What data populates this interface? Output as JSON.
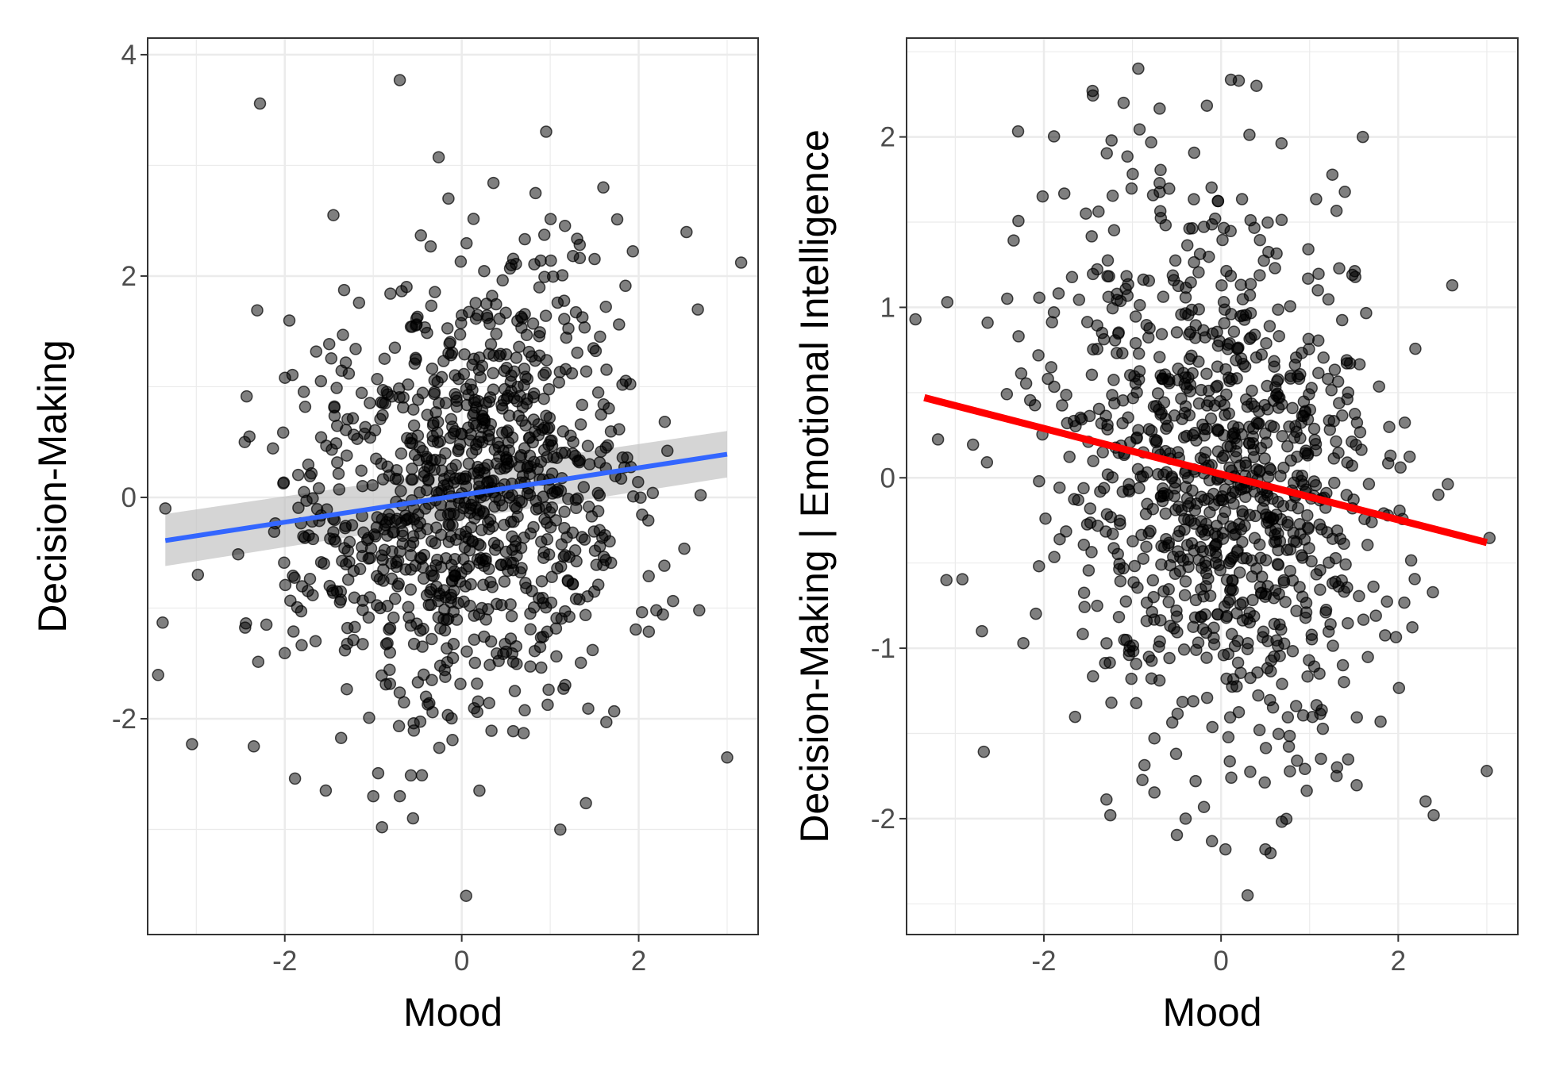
{
  "chart_data": [
    {
      "type": "scatter",
      "xlabel": "Mood",
      "ylabel": "Decision-Making",
      "xlim": [
        -3.55,
        3.35
      ],
      "ylim": [
        -3.95,
        4.15
      ],
      "x_ticks": [
        -2,
        0,
        2
      ],
      "x_tick_labels": [
        "-2",
        "0",
        "2"
      ],
      "y_ticks": [
        -2,
        0,
        2,
        4
      ],
      "y_tick_labels": [
        "-2",
        "0",
        "2",
        "4"
      ],
      "grid": true,
      "fit_line": {
        "x": [
          -3.35,
          3.0
        ],
        "y": [
          -0.39,
          0.39
        ],
        "color": "#3366ff",
        "ci_band": true,
        "ci_upper": [
          -0.15,
          0.6
        ],
        "ci_lower": [
          -0.62,
          0.18
        ],
        "ci_color": "#bebebe"
      },
      "points": {
        "n": 1000,
        "x_mean": 0.0,
        "x_sd": 1.0,
        "y_mean": 0.0,
        "y_sd": 1.0,
        "correlation": 0.12,
        "seed": 17
      },
      "highlight_points": [
        [
          -0.7,
          3.77
        ],
        [
          1.6,
          2.8
        ],
        [
          -0.15,
          2.7
        ],
        [
          -1.45,
          2.55
        ],
        [
          0.05,
          -3.6
        ],
        [
          3.0,
          -2.35
        ],
        [
          -0.7,
          -2.7
        ],
        [
          -1.0,
          -2.7
        ],
        [
          -0.55,
          -2.9
        ],
        [
          0.2,
          -2.65
        ],
        [
          -3.35,
          -0.1
        ],
        [
          2.7,
          0.02
        ],
        [
          -2.4,
          0.55
        ],
        [
          -2.35,
          -2.25
        ]
      ]
    },
    {
      "type": "scatter",
      "xlabel": "Mood",
      "ylabel": "Decision-Making | Emotional Intelligence",
      "xlim": [
        -3.55,
        3.35
      ],
      "ylim": [
        -2.68,
        2.58
      ],
      "x_ticks": [
        -2,
        0,
        2
      ],
      "x_tick_labels": [
        "-2",
        "0",
        "2"
      ],
      "y_ticks": [
        -2,
        -1,
        0,
        1,
        2
      ],
      "y_tick_labels": [
        "-2",
        "-1",
        "0",
        "1",
        "2"
      ],
      "grid": true,
      "fit_line": {
        "x": [
          -3.35,
          3.0
        ],
        "y": [
          0.47,
          -0.38
        ],
        "color": "#ff0000",
        "ci_band": false
      },
      "points": {
        "n": 1000,
        "x_mean": 0.0,
        "x_sd": 1.0,
        "y_mean": 0.0,
        "y_sd": 0.8,
        "correlation": -0.15,
        "seed": 91
      },
      "highlight_points": [
        [
          -3.45,
          0.93
        ],
        [
          -3.1,
          -0.6
        ],
        [
          -2.7,
          -0.9
        ],
        [
          0.3,
          -2.45
        ],
        [
          0.05,
          -2.18
        ],
        [
          0.5,
          -2.18
        ],
        [
          0.2,
          2.33
        ],
        [
          0.4,
          2.3
        ],
        [
          -1.45,
          2.27
        ],
        [
          -1.1,
          2.2
        ],
        [
          1.6,
          2.0
        ],
        [
          3.0,
          -1.72
        ],
        [
          2.4,
          -1.98
        ],
        [
          -0.4,
          -2.0
        ],
        [
          -1.25,
          -1.98
        ]
      ]
    }
  ]
}
